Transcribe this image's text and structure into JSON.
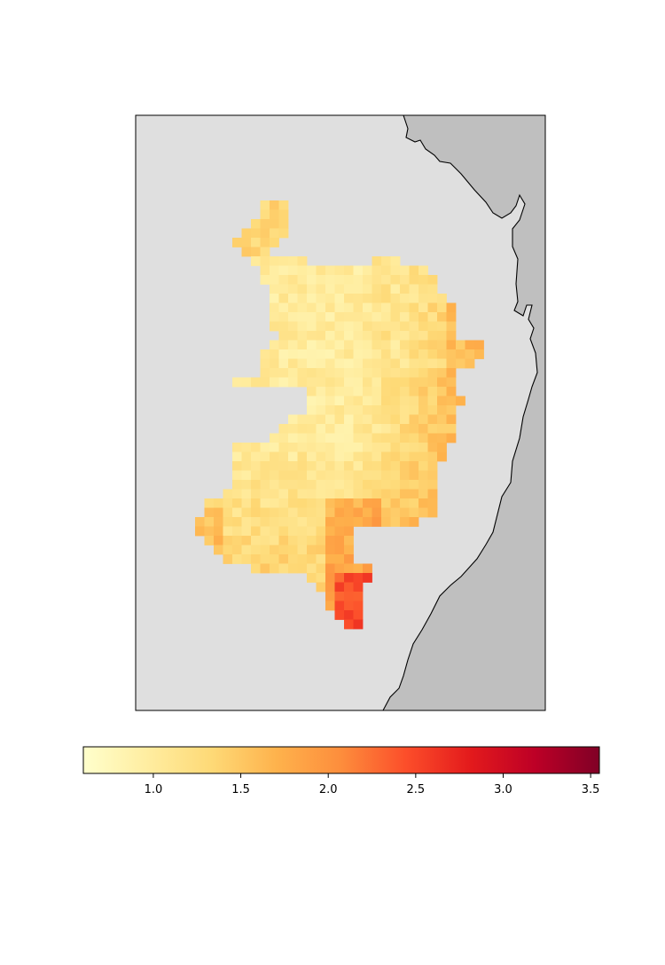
{
  "colors": {
    "background": "#ffffff",
    "map_region": "#dfdfdf",
    "land_beyond": "#bfbfbf",
    "coastline": "#000000",
    "frame": "#000000"
  },
  "colorbar": {
    "colormap": "YlOrRd",
    "min": 0.6,
    "max": 3.55,
    "ticks": [
      1.0,
      1.5,
      2.0,
      2.5,
      3.0,
      3.5
    ],
    "tick_labels": [
      "1.0",
      "1.5",
      "2.0",
      "2.5",
      "3.0",
      "3.5"
    ],
    "orientation": "horizontal",
    "position": "below-map"
  },
  "map": {
    "layer": "gridded-values",
    "value_range_shown": [
      0.7,
      2.5
    ]
  }
}
